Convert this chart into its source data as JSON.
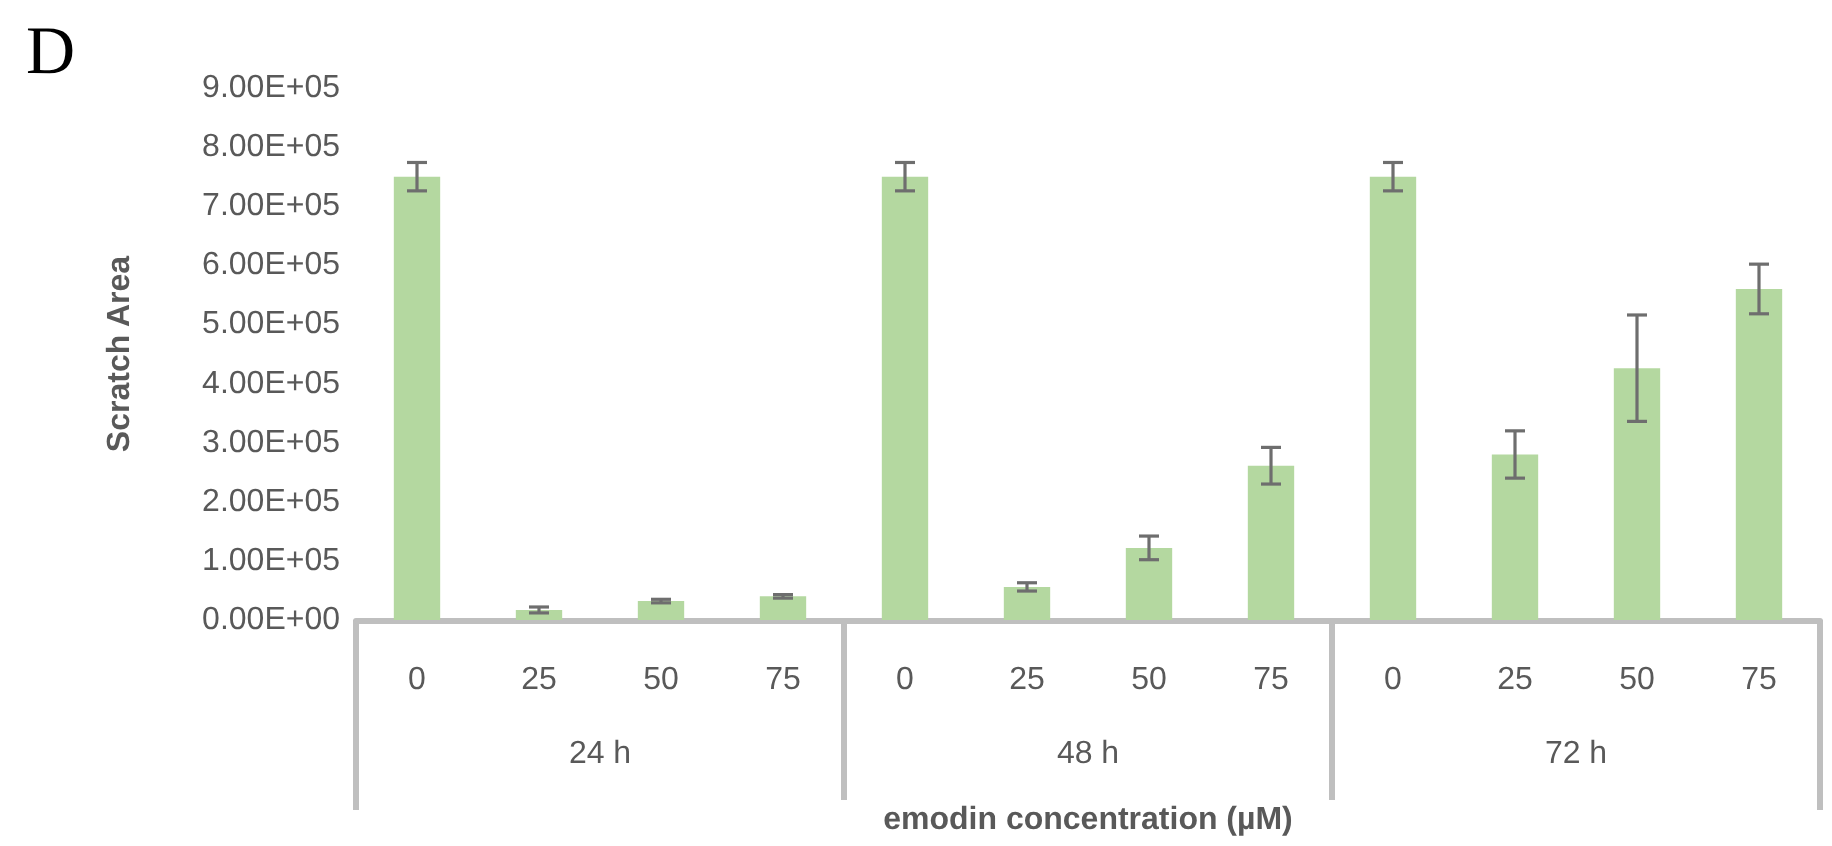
{
  "chart_data": {
    "type": "bar",
    "title": "D",
    "xlabel": "emodin concentration (µM)",
    "ylabel": "Scratch Area",
    "categories": [
      "0",
      "25",
      "50",
      "75",
      "0",
      "25",
      "50",
      "75",
      "0",
      "25",
      "50",
      "75"
    ],
    "annotations": [
      "24 h",
      "48 h",
      "72 h"
    ],
    "values": [
      750000,
      17000,
      32000,
      40000,
      750000,
      56000,
      122000,
      261000,
      750000,
      280000,
      426000,
      560000
    ],
    "errors": [
      24000,
      5000,
      3000,
      3000,
      24000,
      7000,
      20000,
      31000,
      24000,
      40000,
      90000,
      42000
    ],
    "color": "#b4d8a0",
    "ylim": [
      0,
      900000
    ],
    "yticks": [
      {
        "value": 0,
        "label": "0.00E+00"
      },
      {
        "value": 100000,
        "label": "1.00E+05"
      },
      {
        "value": 200000,
        "label": "2.00E+05"
      },
      {
        "value": 300000,
        "label": "3.00E+05"
      },
      {
        "value": 400000,
        "label": "4.00E+05"
      },
      {
        "value": 500000,
        "label": "5.00E+05"
      },
      {
        "value": 600000,
        "label": "6.00E+05"
      },
      {
        "value": 700000,
        "label": "7.00E+05"
      },
      {
        "value": 800000,
        "label": "8.00E+05"
      },
      {
        "value": 900000,
        "label": "9.00E+05"
      }
    ],
    "grid": false
  }
}
